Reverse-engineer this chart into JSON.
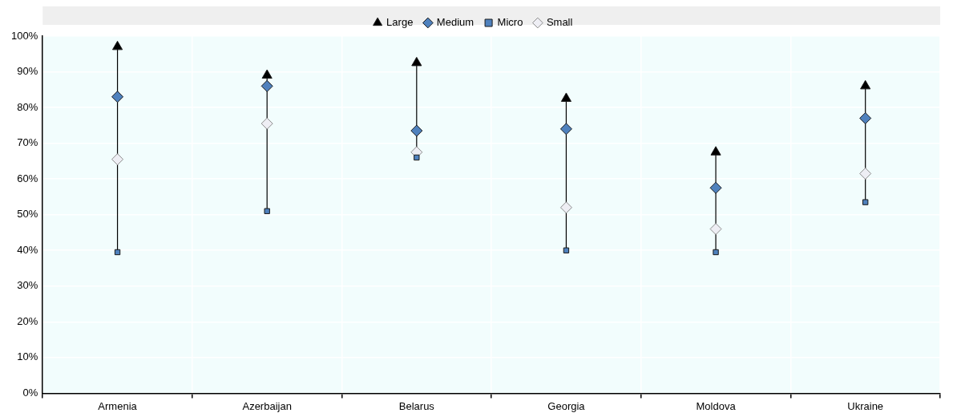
{
  "chart_data": {
    "type": "scatter",
    "categories": [
      "Armenia",
      "Azerbaijan",
      "Belarus",
      "Georgia",
      "Moldova",
      "Ukraine"
    ],
    "series": [
      {
        "name": "Large",
        "color": "#000000",
        "marker": "triangle",
        "values": [
          97,
          89,
          92.5,
          82.5,
          67.5,
          86
        ]
      },
      {
        "name": "Medium",
        "color": "#4f81bd",
        "marker": "diamond",
        "values": [
          83,
          86,
          73.5,
          74,
          57.5,
          77
        ]
      },
      {
        "name": "Micro",
        "color": "#4f81bd",
        "marker": "square",
        "values": [
          39.5,
          51,
          66,
          40,
          39.5,
          53.5
        ]
      },
      {
        "name": "Small",
        "color": "#eeeef4",
        "marker": "diamond",
        "values": [
          65.5,
          75.5,
          67.5,
          52,
          46,
          61.5
        ]
      }
    ],
    "ylim": [
      0,
      100
    ],
    "yticks": [
      {
        "value": 0,
        "label": "0%"
      },
      {
        "value": 10,
        "label": "10%"
      },
      {
        "value": 20,
        "label": "20%"
      },
      {
        "value": 30,
        "label": "30%"
      },
      {
        "value": 40,
        "label": "40%"
      },
      {
        "value": 50,
        "label": "50%"
      },
      {
        "value": 60,
        "label": "60%"
      },
      {
        "value": 70,
        "label": "70%"
      },
      {
        "value": 80,
        "label": "80%"
      },
      {
        "value": 90,
        "label": "90%"
      },
      {
        "value": 100,
        "label": "100%"
      }
    ],
    "grid": true,
    "legend": "top"
  }
}
